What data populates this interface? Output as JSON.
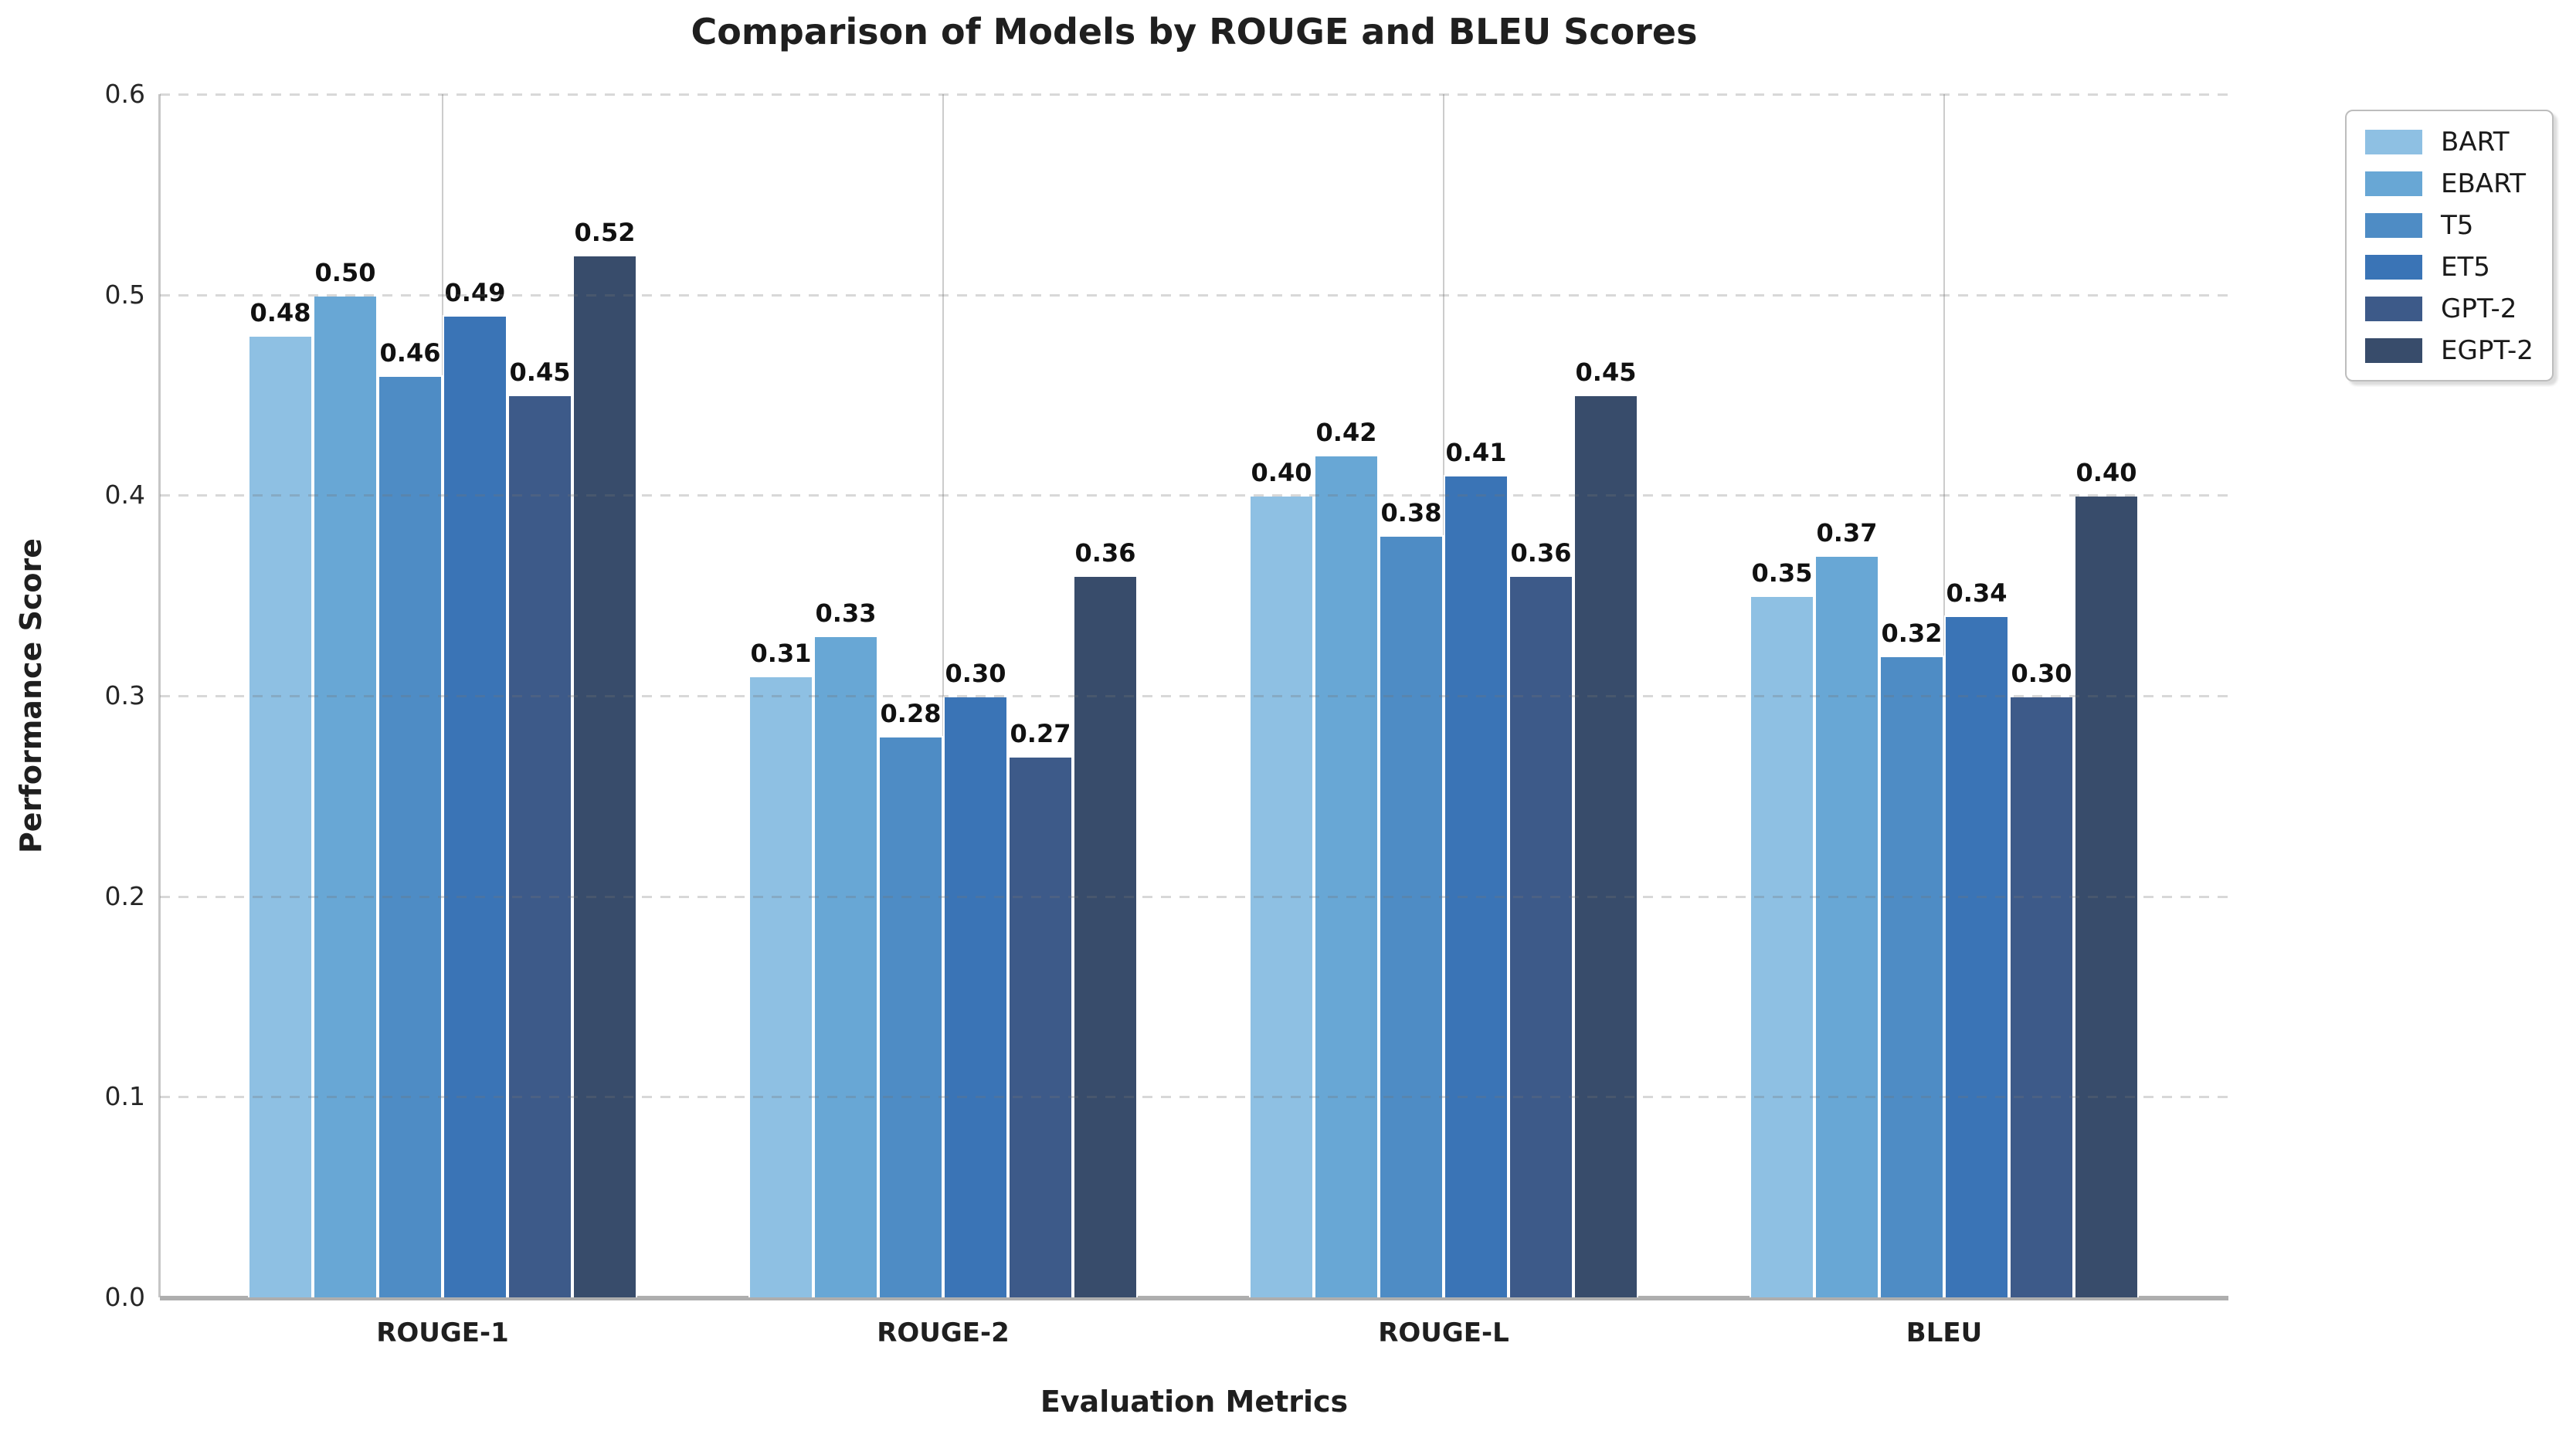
{
  "chart_data": {
    "type": "bar",
    "title": "Comparison of Models by ROUGE and BLEU Scores",
    "xlabel": "Evaluation Metrics",
    "ylabel": "Performance Score",
    "categories": [
      "ROUGE-1",
      "ROUGE-2",
      "ROUGE-L",
      "BLEU"
    ],
    "series": [
      {
        "name": "BART",
        "color": "#8ec0e3",
        "values": [
          0.48,
          0.31,
          0.4,
          0.35
        ]
      },
      {
        "name": "EBART",
        "color": "#68a7d5",
        "values": [
          0.5,
          0.33,
          0.42,
          0.37
        ]
      },
      {
        "name": "T5",
        "color": "#4e8cc5",
        "values": [
          0.46,
          0.28,
          0.38,
          0.32
        ]
      },
      {
        "name": "ET5",
        "color": "#3a74b6",
        "values": [
          0.49,
          0.3,
          0.41,
          0.34
        ]
      },
      {
        "name": "GPT-2",
        "color": "#3d5a89",
        "values": [
          0.45,
          0.27,
          0.36,
          0.3
        ]
      },
      {
        "name": "EGPT-2",
        "color": "#384c6b",
        "values": [
          0.52,
          0.36,
          0.45,
          0.4
        ]
      }
    ],
    "ylim": [
      0.0,
      0.6
    ],
    "yticks": [
      0.0,
      0.1,
      0.2,
      0.3,
      0.4,
      0.5,
      0.6
    ],
    "ytick_labels": [
      "0.0",
      "0.1",
      "0.2",
      "0.3",
      "0.4",
      "0.5",
      "0.6"
    ],
    "value_labels_decimals": 2,
    "grid": {
      "horizontal": "dashed",
      "vertical": "solid-at-category-centers"
    },
    "legend_position": "upper-right-outside"
  }
}
